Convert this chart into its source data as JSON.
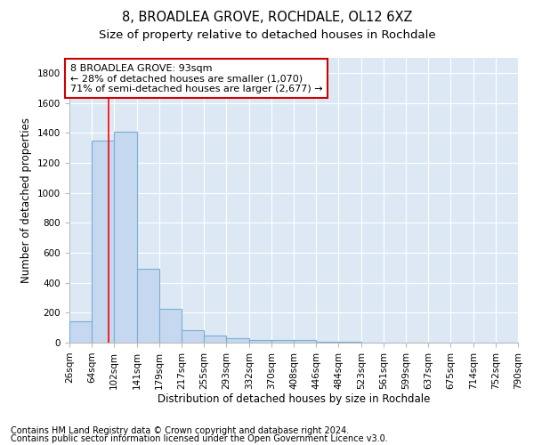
{
  "title1": "8, BROADLEA GROVE, ROCHDALE, OL12 6XZ",
  "title2": "Size of property relative to detached houses in Rochdale",
  "xlabel": "Distribution of detached houses by size in Rochdale",
  "ylabel": "Number of detached properties",
  "footnote1": "Contains HM Land Registry data © Crown copyright and database right 2024.",
  "footnote2": "Contains public sector information licensed under the Open Government Licence v3.0.",
  "bin_edges": [
    26,
    64,
    102,
    141,
    179,
    217,
    255,
    293,
    332,
    370,
    408,
    446,
    484,
    523,
    561,
    599,
    637,
    675,
    714,
    752,
    790
  ],
  "bar_heights": [
    140,
    1350,
    1410,
    490,
    225,
    85,
    50,
    28,
    20,
    15,
    15,
    5,
    3,
    2,
    2,
    2,
    1,
    1,
    1,
    1
  ],
  "bar_color": "#c5d8f0",
  "bar_edge_color": "#7aafd4",
  "red_line_x": 93,
  "annotation_text": "8 BROADLEA GROVE: 93sqm\n← 28% of detached houses are smaller (1,070)\n71% of semi-detached houses are larger (2,677) →",
  "annotation_box_color": "#ffffff",
  "annotation_box_edge": "#cc0000",
  "bg_color": "#dce9f5",
  "grid_color": "#ffffff",
  "ylim": [
    0,
    1900
  ],
  "title1_fontsize": 10.5,
  "title2_fontsize": 9.5,
  "axis_label_fontsize": 8.5,
  "tick_fontsize": 7.5,
  "annotation_fontsize": 8,
  "footnote_fontsize": 7
}
